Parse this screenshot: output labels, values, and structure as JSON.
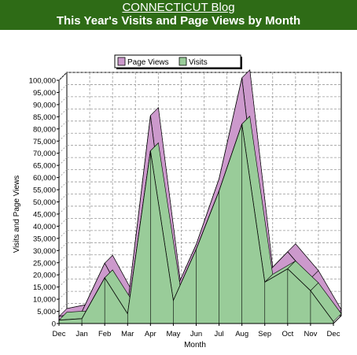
{
  "header": {
    "blog_title": "CONNECTICUT Blog",
    "chart_title": "This Year's Visits and Page Views by Month"
  },
  "colors": {
    "header_bg": "#2e6b16",
    "page_views": "#cc99cc",
    "visits": "#99cc99"
  },
  "chart_data": {
    "type": "area",
    "title": "This Year's Visits and Page Views by Month",
    "xlabel": "Month",
    "ylabel": "Visits and Page Views",
    "categories": [
      "Dec",
      "Jan",
      "Feb",
      "Mar",
      "Apr",
      "May",
      "Jun",
      "Jul",
      "Aug",
      "Sep",
      "Oct",
      "Nov",
      "Dec"
    ],
    "ylim": [
      0,
      100000
    ],
    "yticks": [
      "0",
      "5,000",
      "10,000",
      "15,000",
      "20,000",
      "25,000",
      "30,000",
      "35,000",
      "40,000",
      "45,000",
      "50,000",
      "55,000",
      "60,000",
      "65,000",
      "70,000",
      "75,000",
      "80,000",
      "85,000",
      "90,000",
      "95,000",
      "100,000"
    ],
    "grid": true,
    "legend_position": "top",
    "stacked": true,
    "series": [
      {
        "name": "Page Views",
        "values": [
          1500,
          2800,
          6000,
          3500,
          14500,
          2000,
          2000,
          5000,
          19000,
          2800,
          7000,
          5000,
          1600
        ]
      },
      {
        "name": "Visits",
        "values": [
          1400,
          2000,
          18800,
          4000,
          71000,
          9500,
          30500,
          54500,
          82000,
          17000,
          22500,
          13500,
          800
        ]
      }
    ]
  }
}
